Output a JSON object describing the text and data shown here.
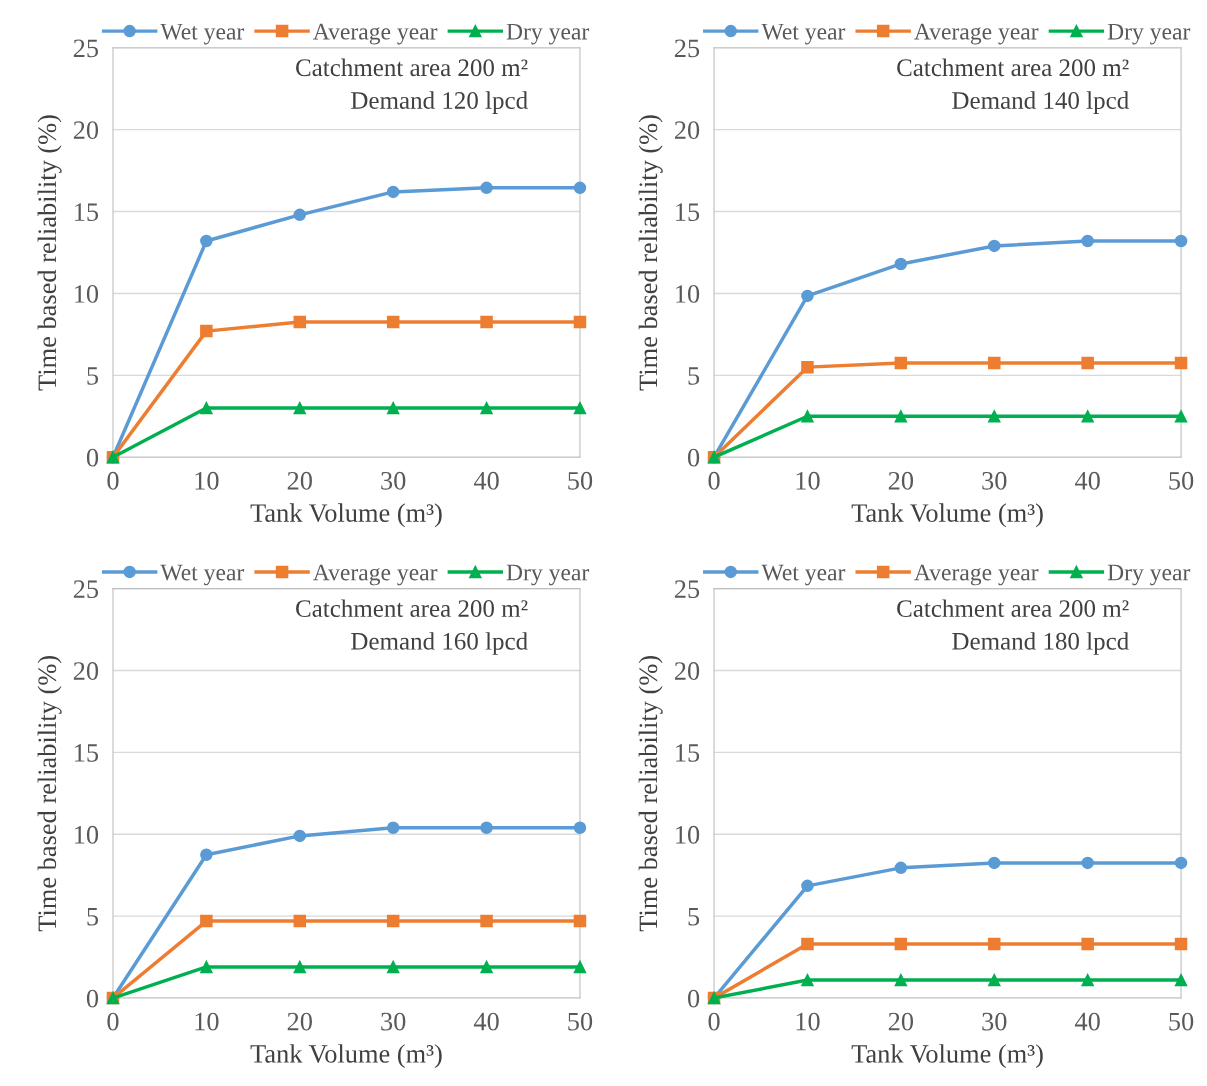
{
  "chart_data": [
    {
      "type": "line",
      "x": [
        0,
        10,
        20,
        30,
        40,
        50
      ],
      "xlabel": "Tank Volume (m³)",
      "ylabel": "Time based reliability (%)",
      "xlim": [
        0,
        50
      ],
      "xticks": [
        0,
        10,
        20,
        30,
        40,
        50
      ],
      "ylim": [
        0,
        25
      ],
      "yticks": [
        0,
        5,
        10,
        15,
        20,
        25
      ],
      "grid": "y",
      "legend": "top",
      "annotations": [
        "Catchment area 200 m²",
        "Demand 120 lpcd"
      ],
      "series": [
        {
          "name": "Wet year",
          "color": "#5b9bd5",
          "marker": "circle",
          "values": [
            0,
            13.2,
            14.8,
            16.2,
            16.45,
            16.45
          ]
        },
        {
          "name": "Average year",
          "color": "#ed7d31",
          "marker": "square",
          "values": [
            0,
            7.7,
            8.25,
            8.25,
            8.25,
            8.25
          ]
        },
        {
          "name": "Dry year",
          "color": "#00b050",
          "marker": "triangle",
          "values": [
            0,
            3.0,
            3.0,
            3.0,
            3.0,
            3.0
          ]
        }
      ]
    },
    {
      "type": "line",
      "x": [
        0,
        10,
        20,
        30,
        40,
        50
      ],
      "xlabel": "Tank Volume (m³)",
      "ylabel": "Time based reliability (%)",
      "xlim": [
        0,
        50
      ],
      "xticks": [
        0,
        10,
        20,
        30,
        40,
        50
      ],
      "ylim": [
        0,
        25
      ],
      "yticks": [
        0,
        5,
        10,
        15,
        20,
        25
      ],
      "grid": "y",
      "legend": "top",
      "annotations": [
        "Catchment area 200 m²",
        "Demand 140 lpcd"
      ],
      "series": [
        {
          "name": "Wet year",
          "color": "#5b9bd5",
          "marker": "circle",
          "values": [
            0,
            9.85,
            11.8,
            12.9,
            13.2,
            13.2
          ]
        },
        {
          "name": "Average year",
          "color": "#ed7d31",
          "marker": "square",
          "values": [
            0,
            5.5,
            5.75,
            5.75,
            5.75,
            5.75
          ]
        },
        {
          "name": "Dry year",
          "color": "#00b050",
          "marker": "triangle",
          "values": [
            0,
            2.5,
            2.5,
            2.5,
            2.5,
            2.5
          ]
        }
      ]
    },
    {
      "type": "line",
      "x": [
        0,
        10,
        20,
        30,
        40,
        50
      ],
      "xlabel": "Tank Volume (m³)",
      "ylabel": "Time based reliability (%)",
      "xlim": [
        0,
        50
      ],
      "xticks": [
        0,
        10,
        20,
        30,
        40,
        50
      ],
      "ylim": [
        0,
        25
      ],
      "yticks": [
        0,
        5,
        10,
        15,
        20,
        25
      ],
      "grid": "y",
      "legend": "top",
      "annotations": [
        "Catchment area 200 m²",
        "Demand 160 lpcd"
      ],
      "series": [
        {
          "name": "Wet year",
          "color": "#5b9bd5",
          "marker": "circle",
          "values": [
            0,
            8.75,
            9.9,
            10.4,
            10.4,
            10.4
          ]
        },
        {
          "name": "Average year",
          "color": "#ed7d31",
          "marker": "square",
          "values": [
            0,
            4.7,
            4.7,
            4.7,
            4.7,
            4.7
          ]
        },
        {
          "name": "Dry year",
          "color": "#00b050",
          "marker": "triangle",
          "values": [
            0,
            1.9,
            1.9,
            1.9,
            1.9,
            1.9
          ]
        }
      ]
    },
    {
      "type": "line",
      "x": [
        0,
        10,
        20,
        30,
        40,
        50
      ],
      "xlabel": "Tank Volume (m³)",
      "ylabel": "Time based reliability (%)",
      "xlim": [
        0,
        50
      ],
      "xticks": [
        0,
        10,
        20,
        30,
        40,
        50
      ],
      "ylim": [
        0,
        25
      ],
      "yticks": [
        0,
        5,
        10,
        15,
        20,
        25
      ],
      "grid": "y",
      "legend": "top",
      "annotations": [
        "Catchment area 200 m²",
        "Demand 180 lpcd"
      ],
      "series": [
        {
          "name": "Wet year",
          "color": "#5b9bd5",
          "marker": "circle",
          "values": [
            0,
            6.85,
            7.95,
            8.25,
            8.25,
            8.25
          ]
        },
        {
          "name": "Average year",
          "color": "#ed7d31",
          "marker": "square",
          "values": [
            0,
            3.3,
            3.3,
            3.3,
            3.3,
            3.3
          ]
        },
        {
          "name": "Dry year",
          "color": "#00b050",
          "marker": "triangle",
          "values": [
            0,
            1.1,
            1.1,
            1.1,
            1.1,
            1.1
          ]
        }
      ]
    }
  ]
}
